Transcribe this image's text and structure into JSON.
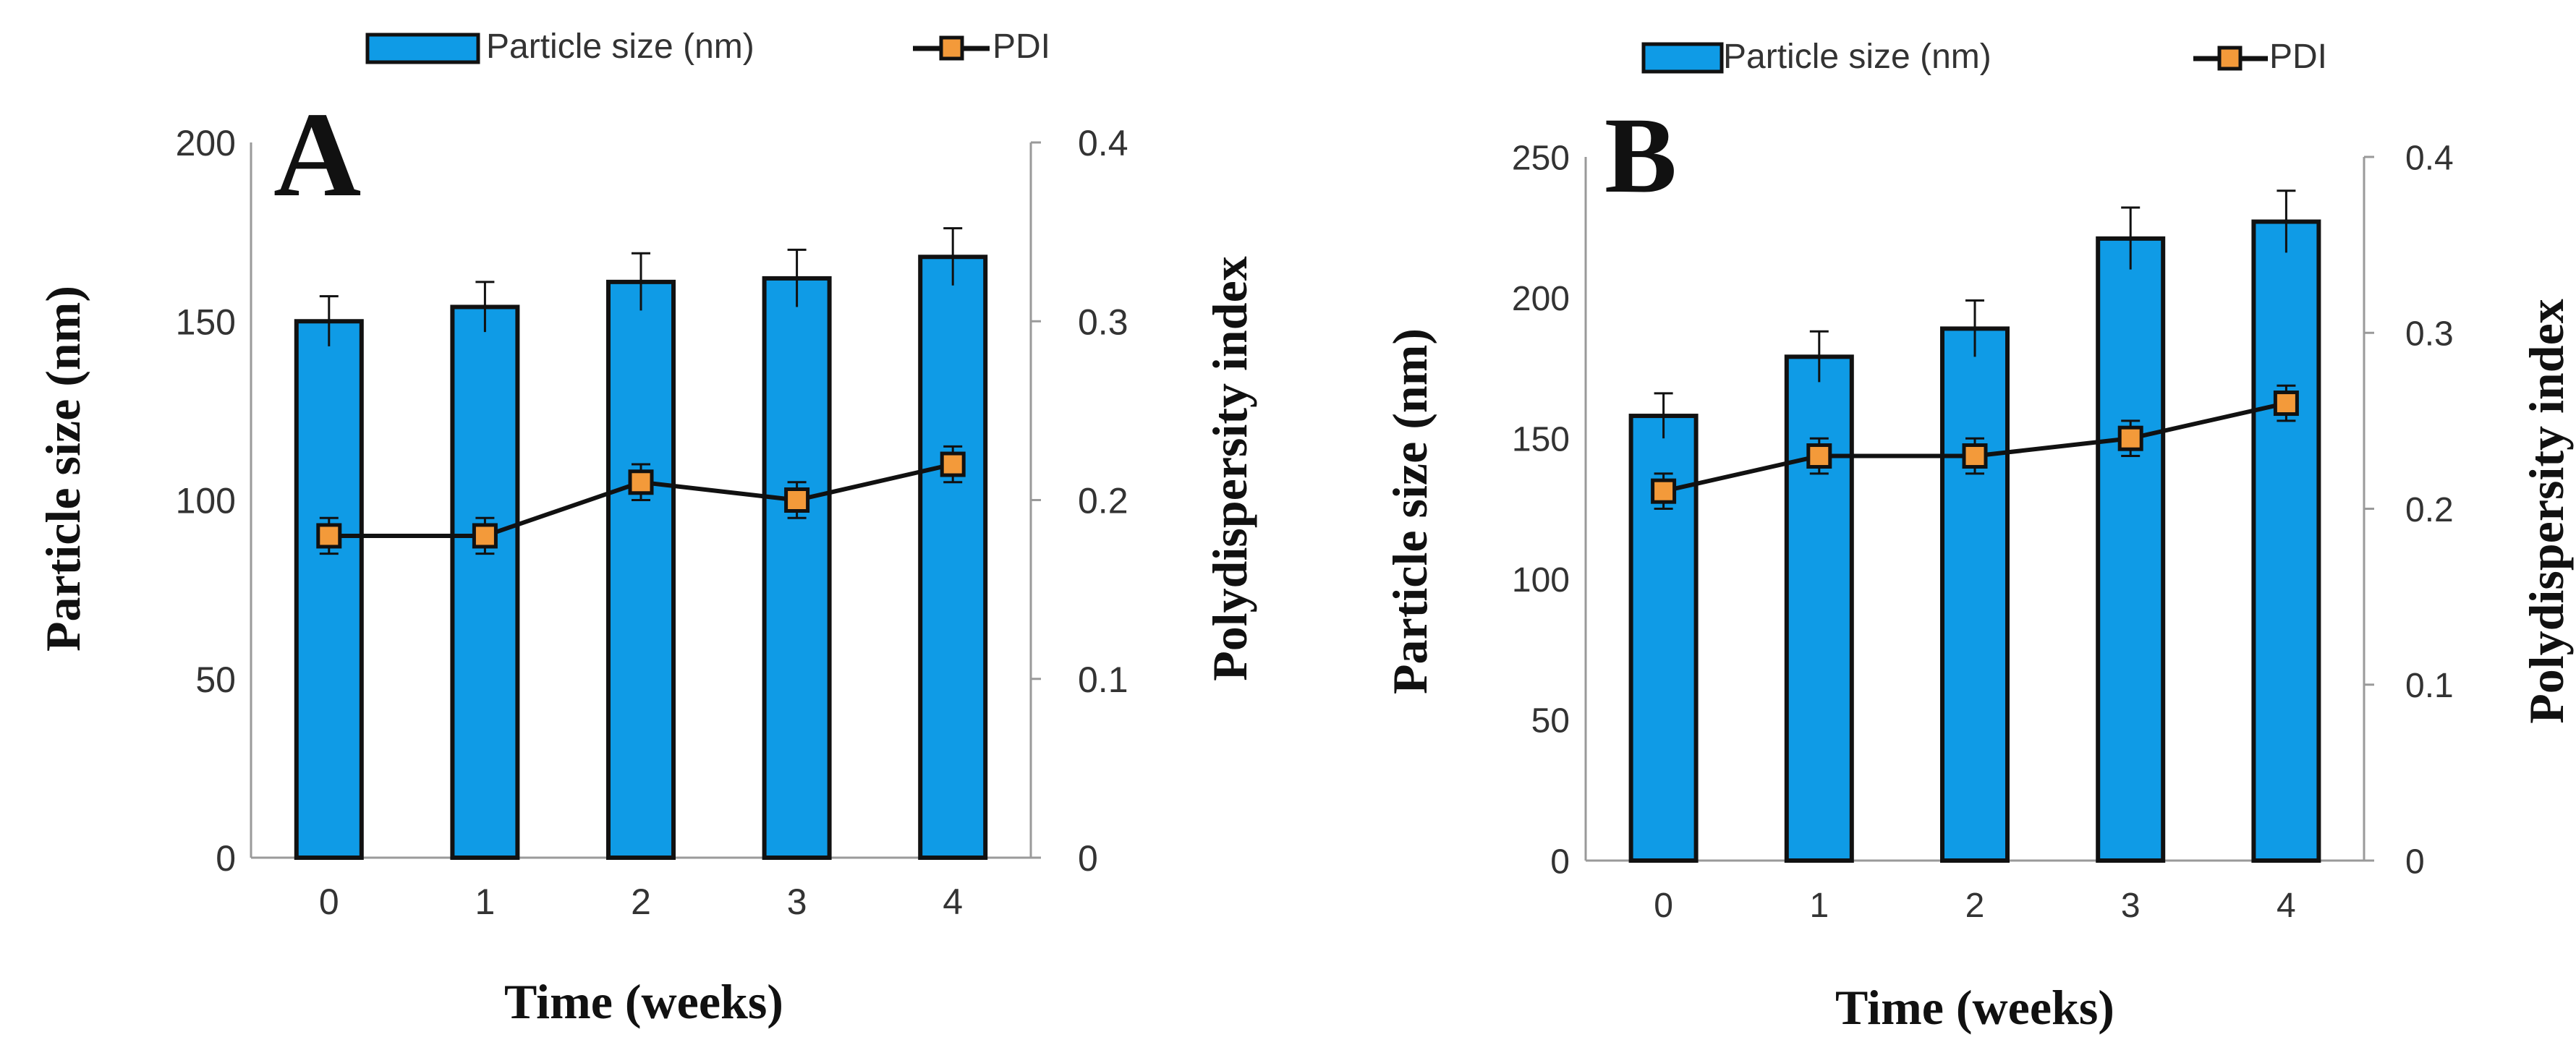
{
  "colors": {
    "bar_fill": "#0F9BE6",
    "bar_stroke": "#111111",
    "line": "#111111",
    "marker_fill": "#F39A3A",
    "axis": "#9a9a9a",
    "text": "#333333"
  },
  "chart_data": [
    {
      "type": "bar",
      "panel_label": "A",
      "legend": {
        "bar_label": "Particle size (nm)",
        "line_label": "PDI",
        "placement": "top"
      },
      "xlabel": "Time (weeks)",
      "ylabel": "Particle size (nm)",
      "y2label": "Polydispersity index",
      "categories": [
        "0",
        "1",
        "2",
        "3",
        "4"
      ],
      "ylim": [
        0,
        200
      ],
      "yticks": [
        "0",
        "50",
        "100",
        "150",
        "200"
      ],
      "y2lim": [
        0,
        0.4
      ],
      "y2ticks": [
        "0",
        "0.1",
        "0.2",
        "0.3",
        "0.4"
      ],
      "series": [
        {
          "name": "Particle size (nm)",
          "type": "bar",
          "axis": "left",
          "values": [
            150,
            154,
            161,
            162,
            168
          ],
          "errors": [
            7,
            7,
            8,
            8,
            8
          ]
        },
        {
          "name": "PDI",
          "type": "line",
          "axis": "right",
          "values": [
            0.18,
            0.18,
            0.21,
            0.2,
            0.22
          ],
          "errors": [
            0.01,
            0.01,
            0.01,
            0.01,
            0.01
          ]
        }
      ]
    },
    {
      "type": "bar",
      "panel_label": "B",
      "legend": {
        "bar_label": "Particle size (nm)",
        "line_label": "PDI",
        "placement": "top"
      },
      "xlabel": "Time (weeks)",
      "ylabel": "Particle size (nm)",
      "y2label": "Polydispersity index",
      "categories": [
        "0",
        "1",
        "2",
        "3",
        "4"
      ],
      "ylim": [
        0,
        250
      ],
      "yticks": [
        "0",
        "50",
        "100",
        "150",
        "200",
        "250"
      ],
      "y2lim": [
        0,
        0.4
      ],
      "y2ticks": [
        "0",
        "0.1",
        "0.2",
        "0.3",
        "0.4"
      ],
      "series": [
        {
          "name": "Particle size (nm)",
          "type": "bar",
          "axis": "left",
          "values": [
            158,
            179,
            189,
            221,
            227
          ],
          "errors": [
            8,
            9,
            10,
            11,
            11
          ]
        },
        {
          "name": "PDI",
          "type": "line",
          "axis": "right",
          "values": [
            0.21,
            0.23,
            0.23,
            0.24,
            0.26
          ],
          "errors": [
            0.01,
            0.01,
            0.01,
            0.01,
            0.01
          ]
        }
      ]
    }
  ]
}
